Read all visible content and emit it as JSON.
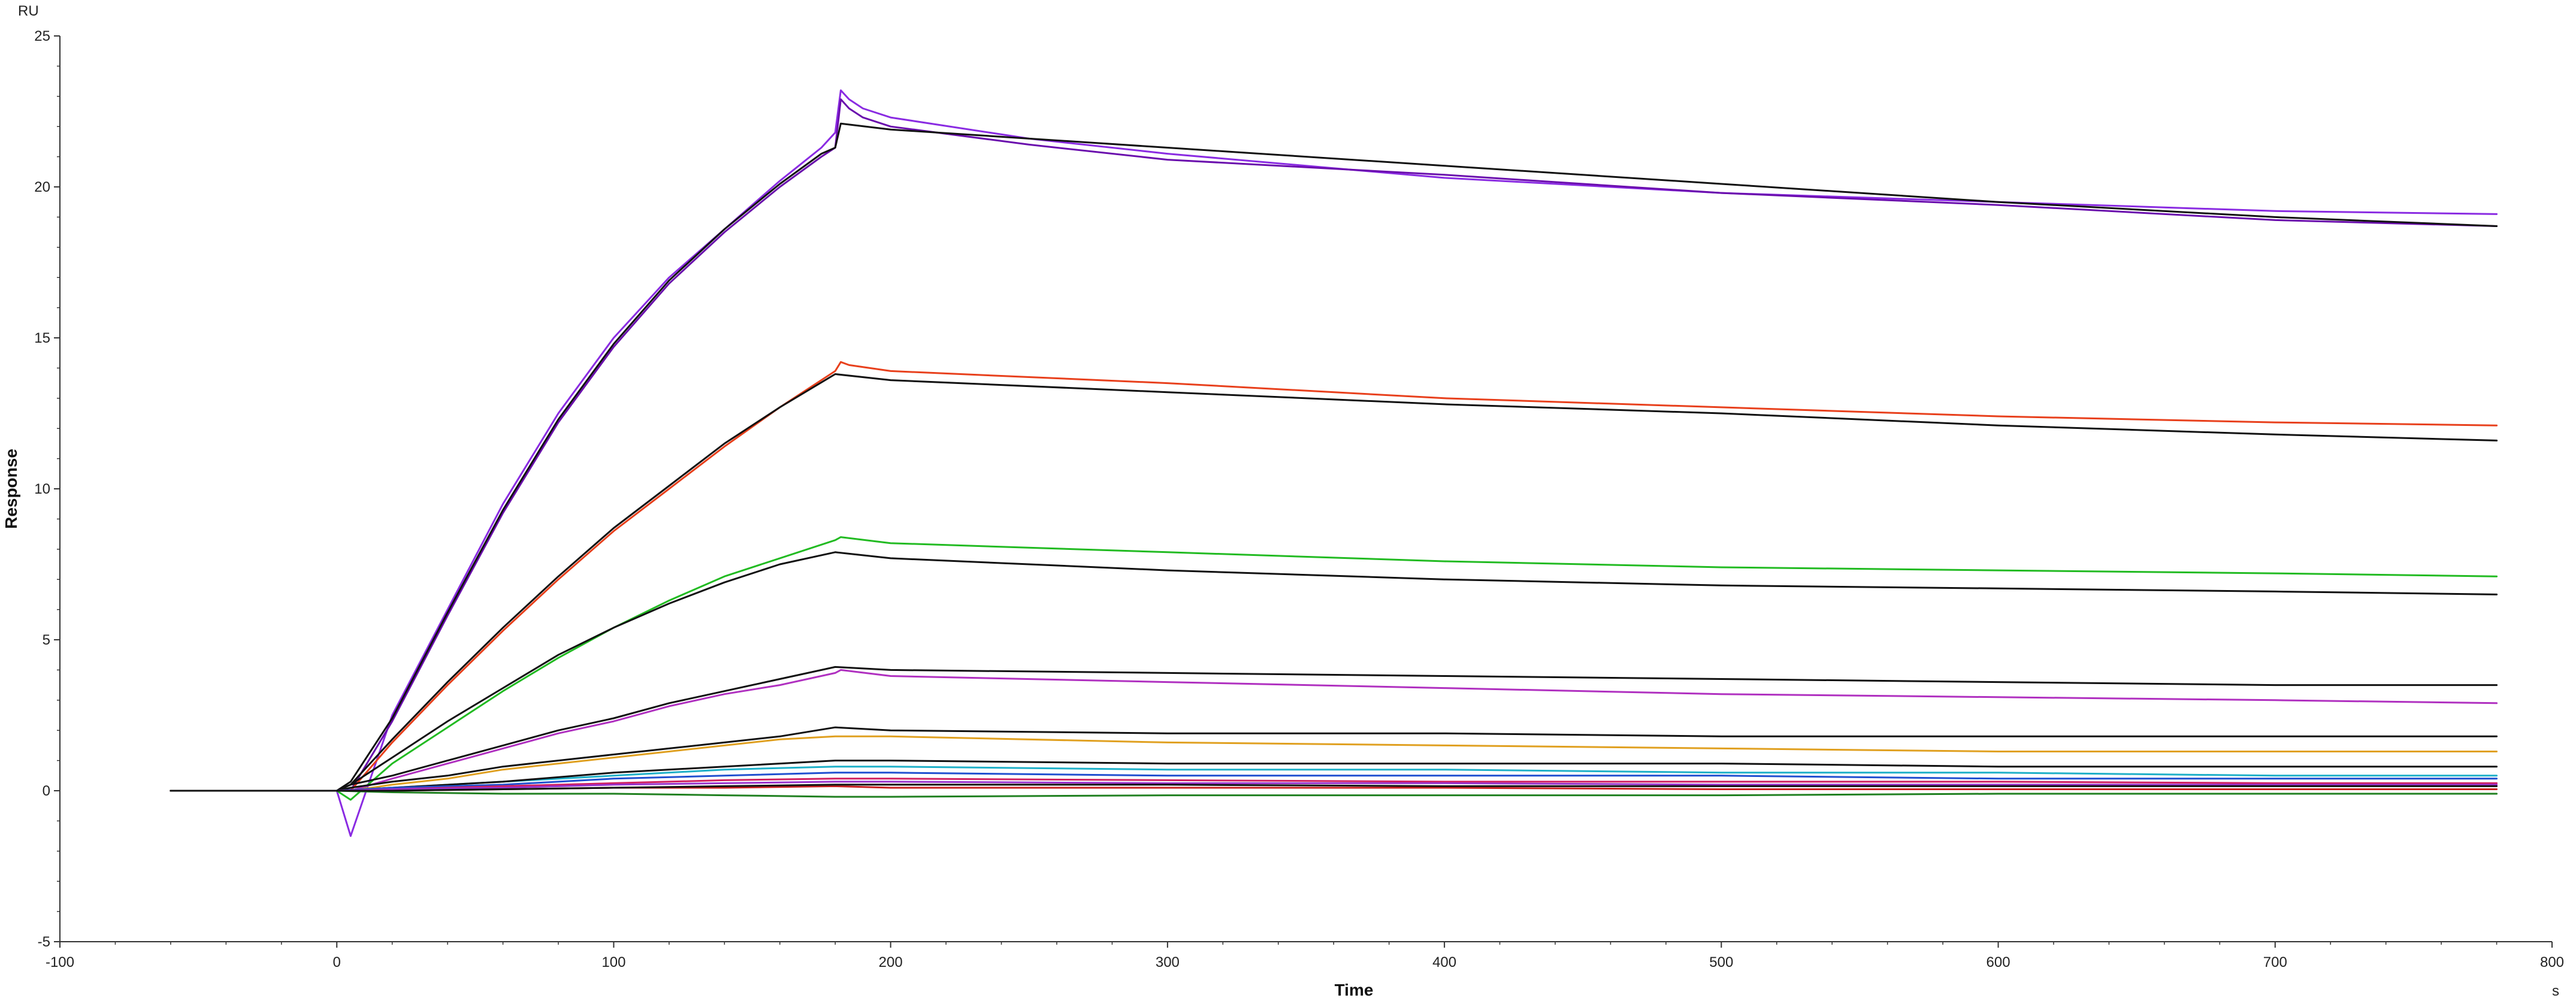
{
  "chart_data": {
    "type": "line",
    "title": "",
    "xlabel": "Time",
    "ylabel": "Response",
    "x_unit": "s",
    "y_unit": "RU",
    "xlim": [
      -100,
      800
    ],
    "ylim": [
      -5,
      25
    ],
    "x_ticks": [
      -100,
      0,
      100,
      200,
      300,
      400,
      500,
      600,
      700,
      800
    ],
    "y_ticks": [
      -5,
      0,
      5,
      10,
      15,
      20,
      25
    ],
    "grid": false,
    "legend": "none",
    "series": [
      {
        "color": "#8a2be2",
        "x": [
          -60,
          0,
          5,
          20,
          40,
          60,
          80,
          100,
          120,
          140,
          160,
          175,
          180,
          182,
          185,
          190,
          200,
          250,
          300,
          400,
          500,
          600,
          700,
          780
        ],
        "y": [
          0,
          0,
          -1.5,
          2.5,
          6,
          9.5,
          12.5,
          15,
          17,
          18.6,
          20.2,
          21.3,
          21.8,
          23.2,
          22.9,
          22.6,
          22.3,
          21.6,
          21.1,
          20.3,
          19.8,
          19.5,
          19.2,
          19.1
        ]
      },
      {
        "color": "#6a0dad",
        "x": [
          -60,
          0,
          5,
          20,
          40,
          60,
          80,
          100,
          120,
          140,
          160,
          175,
          180,
          182,
          185,
          190,
          200,
          250,
          300,
          400,
          500,
          600,
          700,
          780
        ],
        "y": [
          0,
          0,
          0,
          2.3,
          5.8,
          9.2,
          12.2,
          14.7,
          16.8,
          18.5,
          20,
          21,
          21.3,
          22.9,
          22.6,
          22.3,
          22,
          21.4,
          20.9,
          20.4,
          19.8,
          19.4,
          18.9,
          18.7
        ]
      },
      {
        "color": "#111111",
        "x": [
          -60,
          0,
          5,
          20,
          40,
          60,
          80,
          100,
          120,
          140,
          160,
          175,
          180,
          182,
          200,
          300,
          400,
          500,
          600,
          700,
          780
        ],
        "y": [
          0,
          0,
          0.3,
          2.4,
          5.9,
          9.3,
          12.3,
          14.8,
          16.9,
          18.6,
          20.1,
          21.1,
          21.3,
          22.1,
          21.9,
          21.3,
          20.7,
          20.1,
          19.5,
          19,
          18.7
        ]
      },
      {
        "color": "#e8401c",
        "x": [
          -60,
          0,
          5,
          20,
          40,
          60,
          80,
          100,
          120,
          140,
          160,
          180,
          182,
          185,
          200,
          300,
          400,
          500,
          600,
          700,
          780
        ],
        "y": [
          0,
          0,
          0,
          1.6,
          3.5,
          5.3,
          7,
          8.6,
          10,
          11.4,
          12.7,
          13.9,
          14.2,
          14.1,
          13.9,
          13.5,
          13,
          12.7,
          12.4,
          12.2,
          12.1
        ]
      },
      {
        "color": "#111111",
        "x": [
          -60,
          0,
          5,
          20,
          40,
          60,
          80,
          100,
          120,
          140,
          160,
          180,
          200,
          300,
          400,
          500,
          600,
          700,
          780
        ],
        "y": [
          0,
          0,
          0.2,
          1.7,
          3.6,
          5.4,
          7.1,
          8.7,
          10.1,
          11.5,
          12.7,
          13.8,
          13.6,
          13.2,
          12.8,
          12.5,
          12.1,
          11.8,
          11.6
        ]
      },
      {
        "color": "#22bb22",
        "x": [
          -60,
          0,
          5,
          20,
          40,
          60,
          80,
          100,
          120,
          140,
          160,
          180,
          182,
          200,
          300,
          400,
          500,
          600,
          700,
          780
        ],
        "y": [
          0,
          0,
          -0.3,
          0.9,
          2.1,
          3.3,
          4.4,
          5.4,
          6.3,
          7.1,
          7.7,
          8.3,
          8.4,
          8.2,
          7.9,
          7.6,
          7.4,
          7.3,
          7.2,
          7.1
        ]
      },
      {
        "color": "#111111",
        "x": [
          -60,
          0,
          5,
          20,
          40,
          60,
          80,
          100,
          120,
          140,
          160,
          180,
          200,
          300,
          400,
          500,
          600,
          700,
          780
        ],
        "y": [
          0,
          0,
          0.2,
          1.1,
          2.3,
          3.4,
          4.5,
          5.4,
          6.2,
          6.9,
          7.5,
          7.9,
          7.7,
          7.3,
          7,
          6.8,
          6.7,
          6.6,
          6.5
        ]
      },
      {
        "color": "#b030c0",
        "x": [
          -60,
          0,
          5,
          20,
          40,
          60,
          80,
          100,
          120,
          140,
          160,
          180,
          182,
          200,
          300,
          400,
          500,
          600,
          700,
          780
        ],
        "y": [
          0,
          0,
          0,
          0.4,
          0.9,
          1.4,
          1.9,
          2.3,
          2.8,
          3.2,
          3.5,
          3.9,
          4,
          3.8,
          3.6,
          3.4,
          3.2,
          3.1,
          3,
          2.9
        ]
      },
      {
        "color": "#111111",
        "x": [
          -60,
          0,
          5,
          20,
          40,
          60,
          80,
          100,
          120,
          140,
          160,
          180,
          200,
          300,
          400,
          500,
          600,
          700,
          780
        ],
        "y": [
          0,
          0,
          0.2,
          0.5,
          1,
          1.5,
          2,
          2.4,
          2.9,
          3.3,
          3.7,
          4.1,
          4,
          3.9,
          3.8,
          3.7,
          3.6,
          3.5,
          3.5
        ]
      },
      {
        "color": "#e0a020",
        "x": [
          -60,
          0,
          5,
          20,
          40,
          60,
          80,
          100,
          120,
          140,
          160,
          180,
          200,
          300,
          400,
          500,
          600,
          700,
          780
        ],
        "y": [
          0,
          0,
          0,
          0.2,
          0.4,
          0.7,
          0.9,
          1.1,
          1.3,
          1.5,
          1.7,
          1.8,
          1.8,
          1.6,
          1.5,
          1.4,
          1.3,
          1.3,
          1.3
        ]
      },
      {
        "color": "#111111",
        "x": [
          -60,
          0,
          5,
          20,
          40,
          60,
          80,
          100,
          120,
          140,
          160,
          180,
          200,
          300,
          400,
          500,
          600,
          700,
          780
        ],
        "y": [
          0,
          0,
          0.1,
          0.3,
          0.5,
          0.8,
          1,
          1.2,
          1.4,
          1.6,
          1.8,
          2.1,
          2,
          1.9,
          1.9,
          1.8,
          1.8,
          1.8,
          1.8
        ]
      },
      {
        "color": "#1fb0c8",
        "x": [
          -60,
          0,
          20,
          60,
          100,
          140,
          180,
          200,
          300,
          400,
          500,
          600,
          700,
          780
        ],
        "y": [
          0,
          0,
          0.1,
          0.3,
          0.5,
          0.7,
          0.8,
          0.8,
          0.7,
          0.7,
          0.6,
          0.6,
          0.5,
          0.5
        ]
      },
      {
        "color": "#111111",
        "x": [
          -60,
          0,
          20,
          60,
          100,
          140,
          180,
          200,
          300,
          400,
          500,
          600,
          700,
          780
        ],
        "y": [
          0,
          0,
          0.1,
          0.3,
          0.6,
          0.8,
          1,
          1,
          0.9,
          0.9,
          0.9,
          0.8,
          0.8,
          0.8
        ]
      },
      {
        "color": "#2050d0",
        "x": [
          -60,
          0,
          20,
          60,
          100,
          140,
          180,
          200,
          300,
          400,
          500,
          600,
          700,
          780
        ],
        "y": [
          0,
          0,
          0.1,
          0.2,
          0.4,
          0.5,
          0.6,
          0.6,
          0.5,
          0.5,
          0.5,
          0.4,
          0.4,
          0.4
        ]
      },
      {
        "color": "#d02060",
        "x": [
          -60,
          0,
          20,
          60,
          100,
          140,
          180,
          200,
          300,
          400,
          500,
          600,
          700,
          780
        ],
        "y": [
          0,
          0,
          0.05,
          0.15,
          0.25,
          0.35,
          0.4,
          0.4,
          0.35,
          0.3,
          0.3,
          0.3,
          0.25,
          0.25
        ]
      },
      {
        "color": "#9932cc",
        "x": [
          -60,
          0,
          20,
          60,
          100,
          140,
          180,
          200,
          300,
          400,
          500,
          600,
          700,
          780
        ],
        "y": [
          0,
          0,
          0.05,
          0.1,
          0.2,
          0.25,
          0.3,
          0.3,
          0.25,
          0.25,
          0.2,
          0.2,
          0.2,
          0.2
        ]
      },
      {
        "color": "#c82020",
        "x": [
          -60,
          0,
          20,
          60,
          100,
          140,
          180,
          200,
          300,
          400,
          500,
          600,
          700,
          780
        ],
        "y": [
          0,
          0,
          0,
          0.05,
          0.1,
          0.1,
          0.15,
          0.1,
          0.1,
          0.1,
          0.05,
          0.05,
          0.05,
          0.05
        ]
      },
      {
        "color": "#208020",
        "x": [
          -60,
          0,
          20,
          60,
          100,
          140,
          180,
          200,
          300,
          400,
          500,
          600,
          700,
          780
        ],
        "y": [
          0,
          0,
          -0.05,
          -0.1,
          -0.1,
          -0.15,
          -0.2,
          -0.2,
          -0.15,
          -0.15,
          -0.15,
          -0.1,
          -0.1,
          -0.1
        ]
      },
      {
        "color": "#111111",
        "x": [
          -60,
          0,
          20,
          60,
          100,
          140,
          180,
          200,
          300,
          400,
          500,
          600,
          700,
          780
        ],
        "y": [
          0,
          0,
          0,
          0.05,
          0.1,
          0.15,
          0.2,
          0.2,
          0.2,
          0.15,
          0.15,
          0.15,
          0.15,
          0.15
        ]
      }
    ]
  }
}
